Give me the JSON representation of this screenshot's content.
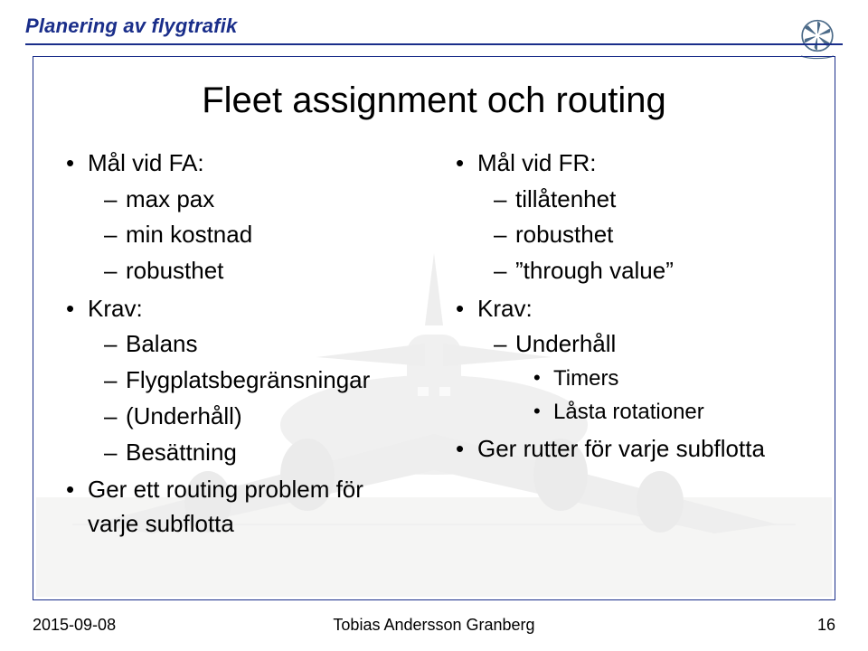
{
  "header": {
    "title": "Planering av flygtrafik",
    "rule_color": "#1a2e8a",
    "title_color": "#1a2e8a"
  },
  "slide": {
    "title": "Fleet assignment och routing",
    "title_fontsize": 40,
    "body_fontsize": 26
  },
  "left": {
    "items": [
      {
        "label": "Mål vid FA:",
        "sub": [
          {
            "label": "max pax"
          },
          {
            "label": "min kostnad"
          },
          {
            "label": "robusthet"
          }
        ]
      },
      {
        "label": "Krav:",
        "sub": [
          {
            "label": "Balans"
          },
          {
            "label": "Flygplatsbegränsningar"
          },
          {
            "label": "(Underhåll)"
          },
          {
            "label": "Besättning"
          }
        ]
      },
      {
        "label": "Ger ett routing problem för varje subflotta"
      }
    ]
  },
  "right": {
    "items": [
      {
        "label": "Mål vid FR:",
        "sub": [
          {
            "label": "tillåtenhet"
          },
          {
            "label": "robusthet"
          },
          {
            "label": "”through value”"
          }
        ]
      },
      {
        "label": "Krav:",
        "sub": [
          {
            "label": "Underhåll",
            "sub": [
              {
                "label": "Timers"
              },
              {
                "label": "Låsta rotationer"
              }
            ]
          }
        ]
      },
      {
        "label": "Ger rutter för varje subflotta"
      }
    ]
  },
  "footer": {
    "date": "2015-09-08",
    "author": "Tobias Andersson Granberg",
    "page": "16"
  },
  "logo": {
    "ring_color": "#4b6a88",
    "petal_color": "#4b6a88",
    "text_color": "#4b6a88"
  },
  "bg_plane": {
    "body_color": "#6e6e6e",
    "ground_color": "#b5b5a8"
  }
}
